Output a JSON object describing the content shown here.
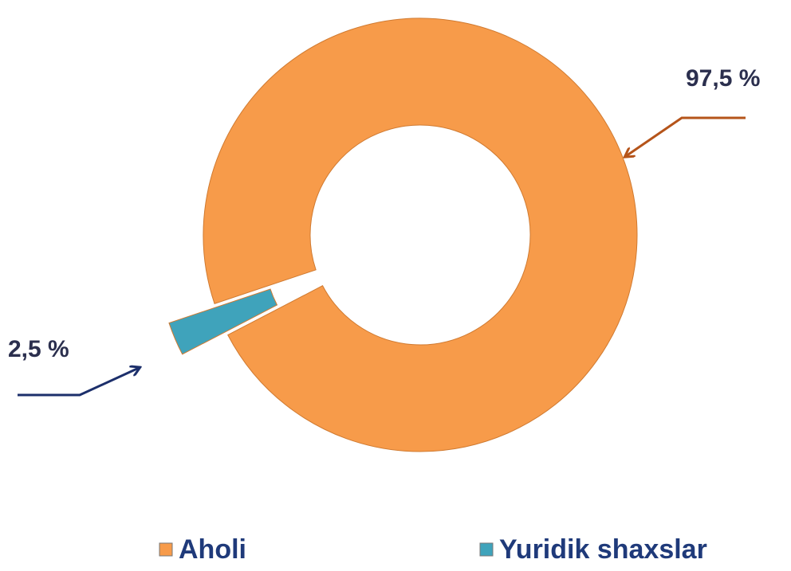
{
  "chart_data": {
    "type": "donut",
    "categories": [
      "Aholi",
      "Yuridik shaxslar"
    ],
    "values": [
      97.5,
      2.5
    ],
    "value_labels": [
      "97,5 %",
      "2,5 %"
    ],
    "colors": [
      "#f79b4a",
      "#3fa3bb"
    ],
    "legend": "bottom"
  }
}
